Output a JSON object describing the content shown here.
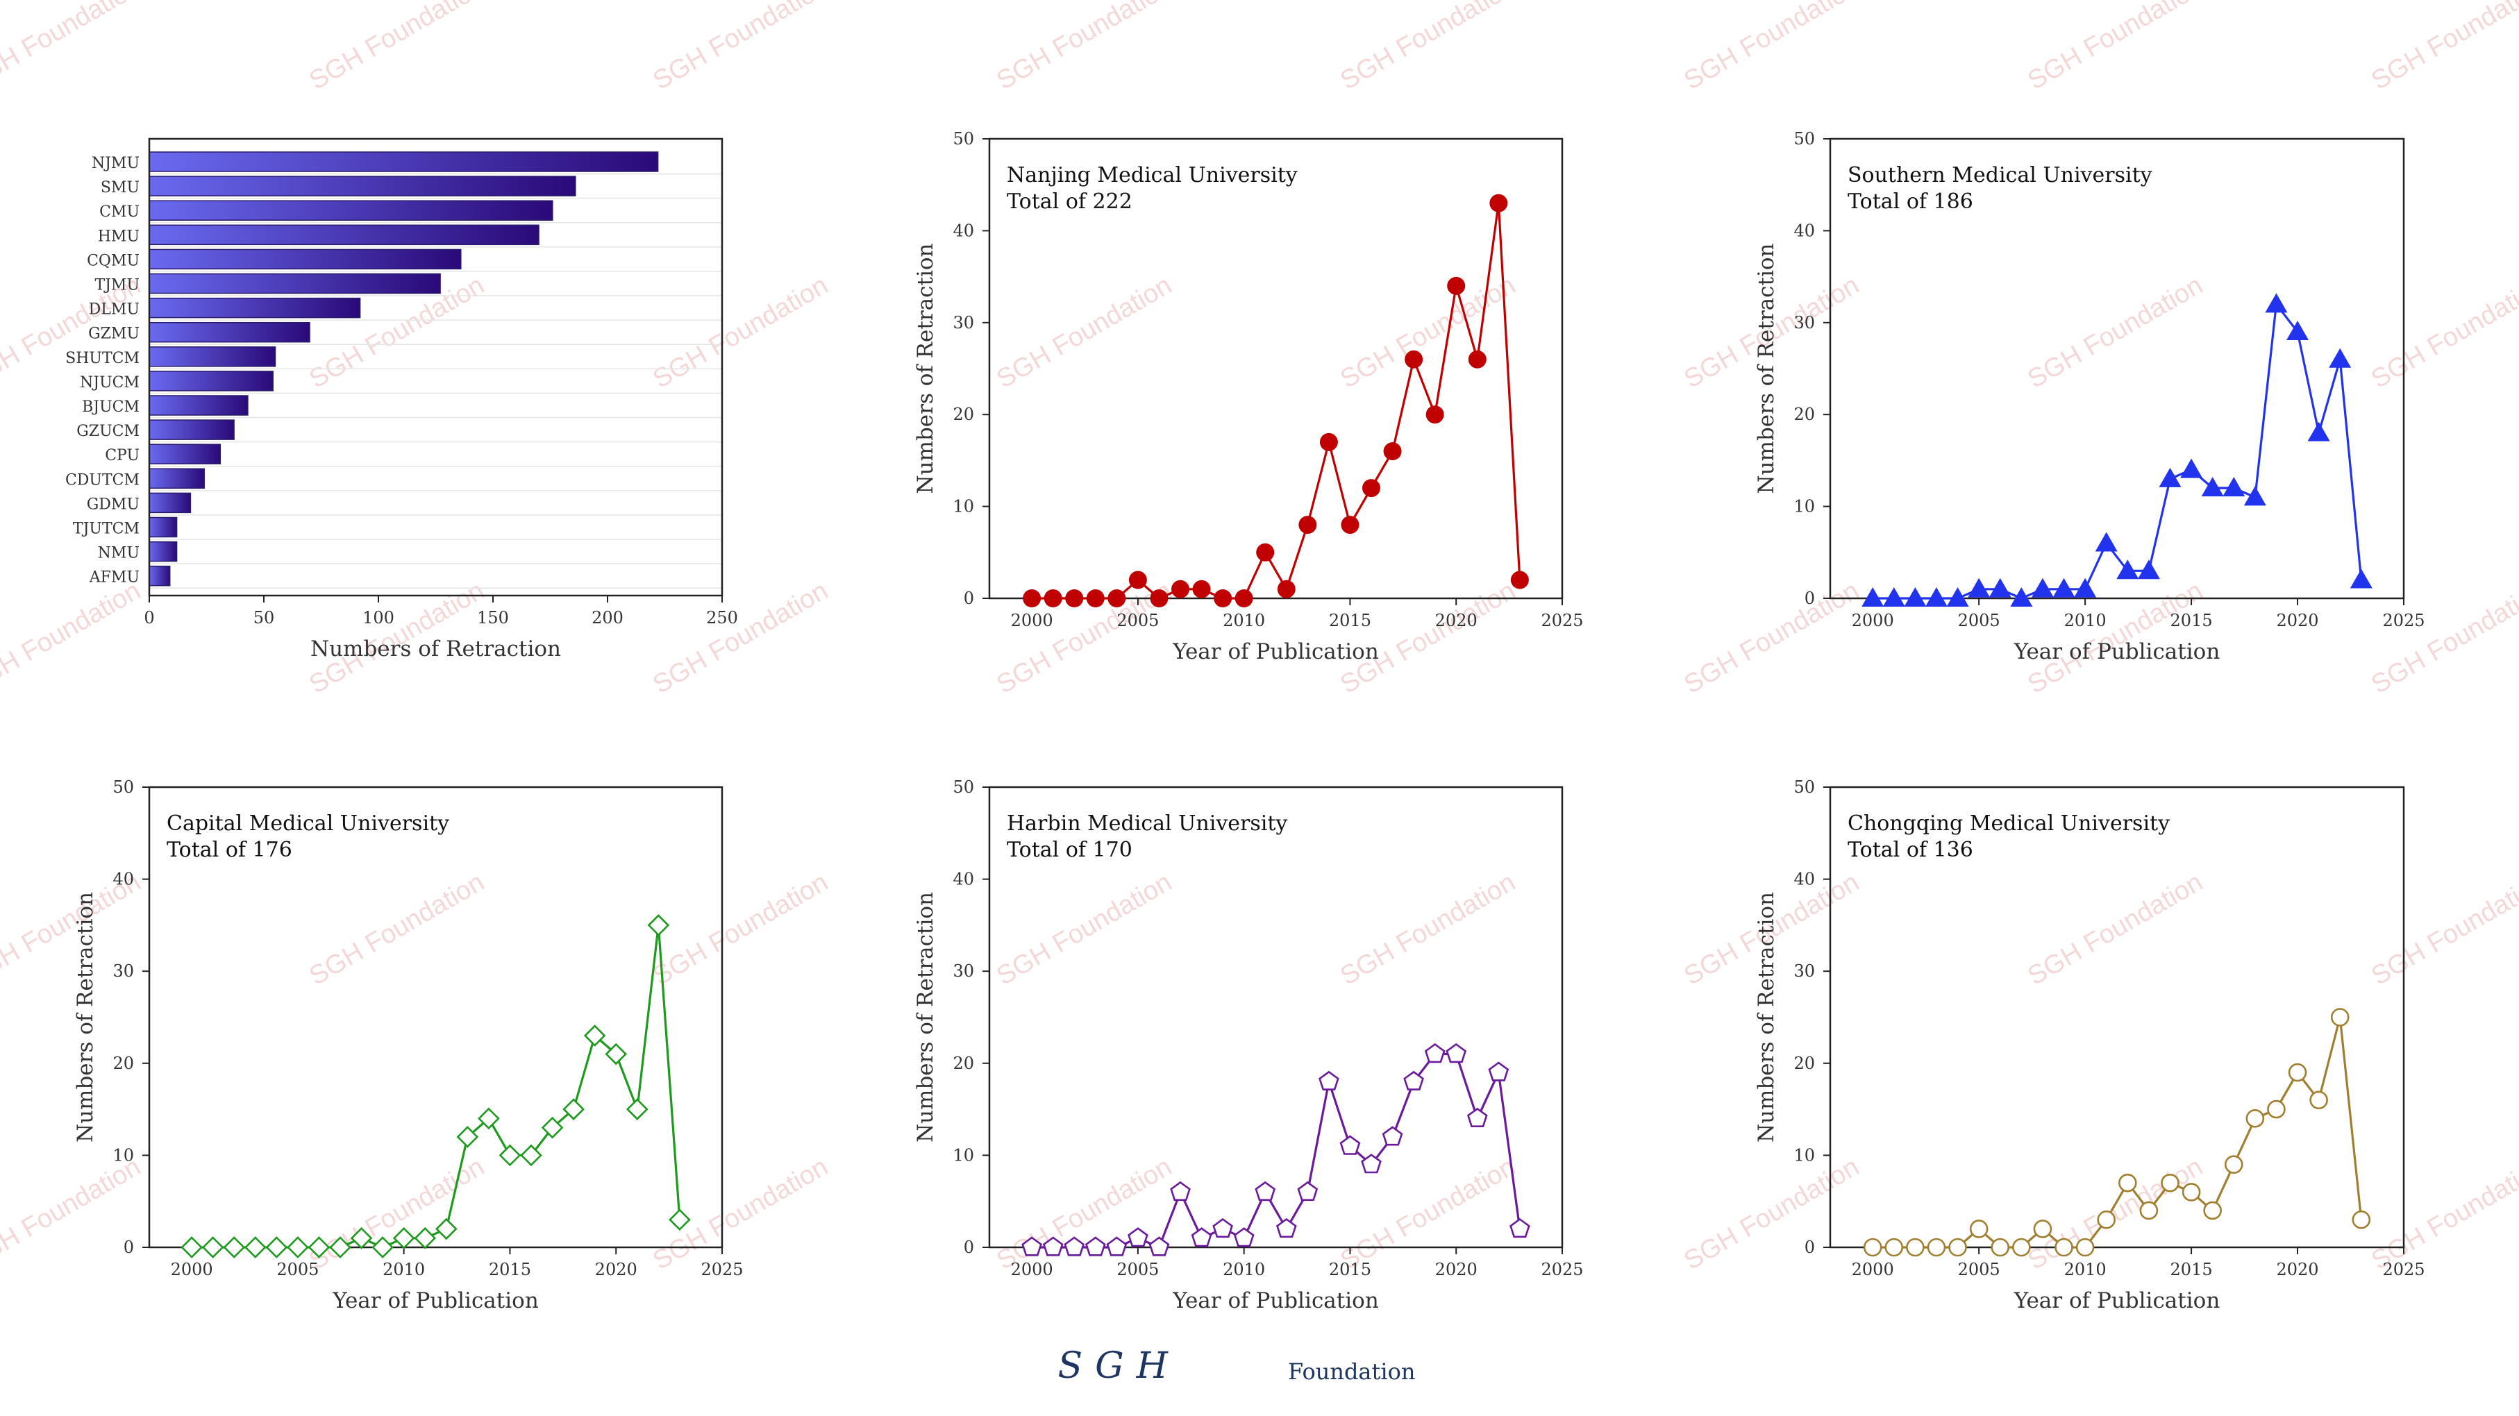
{
  "watermark": "SGH Foundation",
  "footer": {
    "logo": "SGH",
    "label": "Foundation",
    "color": "#1d3560"
  },
  "chart_data": [
    {
      "type": "bar",
      "orientation": "horizontal",
      "categories": [
        "NJMU",
        "SMU",
        "CMU",
        "HMU",
        "CQMU",
        "TJMU",
        "DLMU",
        "GZMU",
        "SHUTCM",
        "NJUCM",
        "BJUCM",
        "GZUCM",
        "CPU",
        "CDUTCM",
        "GDMU",
        "TJUTCM",
        "NMU",
        "AFMU"
      ],
      "values": [
        222,
        186,
        176,
        170,
        136,
        127,
        92,
        70,
        55,
        54,
        43,
        37,
        31,
        24,
        18,
        12,
        12,
        9
      ],
      "xlabel": "Numbers of Retraction",
      "xlim": [
        0,
        250
      ],
      "xticks": [
        0,
        50,
        100,
        150,
        200,
        250
      ],
      "colors": {
        "light": "#6a6af0",
        "dark": "#2a0a78"
      }
    },
    {
      "type": "line",
      "title": "Nanjing Medical University",
      "subtitle": "Total of 222",
      "xlabel": "Year of Publication",
      "ylabel": "Numbers of Retraction",
      "xlim": [
        1998,
        2025
      ],
      "ylim": [
        0,
        50
      ],
      "xticks": [
        2000,
        2005,
        2010,
        2015,
        2020,
        2025
      ],
      "yticks": [
        0,
        10,
        20,
        30,
        40,
        50
      ],
      "marker": "circle-filled",
      "color": "#c00000",
      "x": [
        2000,
        2001,
        2002,
        2003,
        2004,
        2005,
        2006,
        2007,
        2008,
        2009,
        2010,
        2011,
        2012,
        2013,
        2014,
        2015,
        2016,
        2017,
        2018,
        2019,
        2020,
        2021,
        2022,
        2023
      ],
      "y": [
        0,
        0,
        0,
        0,
        0,
        2,
        0,
        1,
        1,
        0,
        0,
        5,
        1,
        8,
        17,
        8,
        12,
        16,
        26,
        20,
        34,
        26,
        43,
        2
      ]
    },
    {
      "type": "line",
      "title": "Southern Medical University",
      "subtitle": "Total of 186",
      "xlabel": "Year of Publication",
      "ylabel": "Numbers of Retraction",
      "xlim": [
        1998,
        2025
      ],
      "ylim": [
        0,
        50
      ],
      "xticks": [
        2000,
        2005,
        2010,
        2015,
        2020,
        2025
      ],
      "yticks": [
        0,
        10,
        20,
        30,
        40,
        50
      ],
      "marker": "triangle-filled",
      "color": "#2233ee",
      "x": [
        2000,
        2001,
        2002,
        2003,
        2004,
        2005,
        2006,
        2007,
        2008,
        2009,
        2010,
        2011,
        2012,
        2013,
        2014,
        2015,
        2016,
        2017,
        2018,
        2019,
        2020,
        2021,
        2022,
        2023
      ],
      "y": [
        0,
        0,
        0,
        0,
        0,
        1,
        1,
        0,
        1,
        1,
        1,
        6,
        3,
        3,
        13,
        14,
        12,
        12,
        11,
        32,
        29,
        18,
        26,
        2
      ]
    },
    {
      "type": "line",
      "title": "Capital Medical University",
      "subtitle": "Total of 176",
      "xlabel": "Year of Publication",
      "ylabel": "Numbers of Retraction",
      "xlim": [
        1998,
        2025
      ],
      "ylim": [
        0,
        50
      ],
      "xticks": [
        2000,
        2005,
        2010,
        2015,
        2020,
        2025
      ],
      "yticks": [
        0,
        10,
        20,
        30,
        40,
        50
      ],
      "marker": "diamond-open",
      "color": "#1e9a1e",
      "x": [
        2000,
        2001,
        2002,
        2003,
        2004,
        2005,
        2006,
        2007,
        2008,
        2009,
        2010,
        2011,
        2012,
        2013,
        2014,
        2015,
        2016,
        2017,
        2018,
        2019,
        2020,
        2021,
        2022,
        2023
      ],
      "y": [
        0,
        0,
        0,
        0,
        0,
        0,
        0,
        0,
        1,
        0,
        1,
        1,
        2,
        12,
        14,
        10,
        10,
        13,
        15,
        23,
        21,
        15,
        35,
        3
      ]
    },
    {
      "type": "line",
      "title": "Harbin Medical University",
      "subtitle": "Total of 170",
      "xlabel": "Year of Publication",
      "ylabel": "Numbers of Retraction",
      "xlim": [
        1998,
        2025
      ],
      "ylim": [
        0,
        50
      ],
      "xticks": [
        2000,
        2005,
        2010,
        2015,
        2020,
        2025
      ],
      "yticks": [
        0,
        10,
        20,
        30,
        40,
        50
      ],
      "marker": "pentagon-open",
      "color": "#6a1a9a",
      "x": [
        2000,
        2001,
        2002,
        2003,
        2004,
        2005,
        2006,
        2007,
        2008,
        2009,
        2010,
        2011,
        2012,
        2013,
        2014,
        2015,
        2016,
        2017,
        2018,
        2019,
        2020,
        2021,
        2022,
        2023
      ],
      "y": [
        0,
        0,
        0,
        0,
        0,
        1,
        0,
        6,
        1,
        2,
        1,
        6,
        2,
        6,
        18,
        11,
        9,
        12,
        18,
        21,
        21,
        14,
        19,
        2
      ]
    },
    {
      "type": "line",
      "title": "Chongqing Medical University",
      "subtitle": "Total of 136",
      "xlabel": "Year of Publication",
      "ylabel": "Numbers of Retraction",
      "xlim": [
        1998,
        2025
      ],
      "ylim": [
        0,
        50
      ],
      "xticks": [
        2000,
        2005,
        2010,
        2015,
        2020,
        2025
      ],
      "yticks": [
        0,
        10,
        20,
        30,
        40,
        50
      ],
      "marker": "circle-open",
      "color": "#a08030",
      "x": [
        2000,
        2001,
        2002,
        2003,
        2004,
        2005,
        2006,
        2007,
        2008,
        2009,
        2010,
        2011,
        2012,
        2013,
        2014,
        2015,
        2016,
        2017,
        2018,
        2019,
        2020,
        2021,
        2022,
        2023
      ],
      "y": [
        0,
        0,
        0,
        0,
        0,
        2,
        0,
        0,
        2,
        0,
        0,
        3,
        7,
        4,
        7,
        6,
        4,
        9,
        14,
        15,
        19,
        16,
        25,
        3
      ]
    }
  ]
}
